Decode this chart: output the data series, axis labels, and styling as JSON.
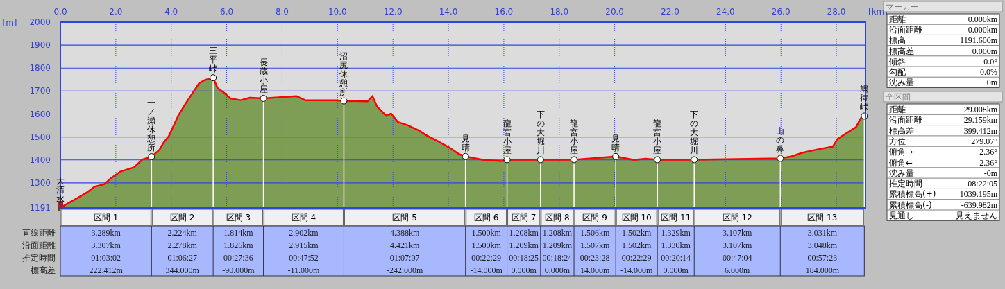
{
  "chart_data": [
    {
      "type": "area",
      "xlim": [
        0,
        29.05
      ],
      "ylim": [
        1191,
        2000
      ],
      "xlabel": "[km]",
      "ylabel": "[m]",
      "grid": true,
      "xticks": [
        {
          "value": 0,
          "label": "0.0"
        },
        {
          "value": 2,
          "label": "2.0"
        },
        {
          "value": 4,
          "label": "4.0"
        },
        {
          "value": 6,
          "label": "6.0"
        },
        {
          "value": 8,
          "label": "8.0"
        },
        {
          "value": 10,
          "label": "10.0"
        },
        {
          "value": 12,
          "label": "12.0"
        },
        {
          "value": 14,
          "label": "14.0"
        },
        {
          "value": 16,
          "label": "16.0"
        },
        {
          "value": 18,
          "label": "18.0"
        },
        {
          "value": 20,
          "label": "20.0"
        },
        {
          "value": 22,
          "label": "22.0"
        },
        {
          "value": 24,
          "label": "24.0"
        },
        {
          "value": 26,
          "label": "26.0"
        },
        {
          "value": 28,
          "label": "28.0"
        }
      ],
      "yticks": [
        1191,
        1300,
        1400,
        1500,
        1600,
        1700,
        1800,
        1900,
        2000
      ],
      "series": [
        {
          "type": "area",
          "color": "#7f9e55",
          "x": [
            0,
            0.41,
            0.74,
            0.99,
            1.24,
            1.58,
            1.83,
            2.16,
            2.66,
            2.96,
            3.289,
            3.58,
            3.71,
            3.91,
            4.25,
            4.5,
            4.75,
            5.0,
            5.21,
            5.513,
            5.67,
            5.88,
            6.13,
            6.5,
            6.84,
            7.327,
            8.51,
            8.84,
            9.93,
            10.229,
            11.09,
            11.26,
            11.43,
            11.76,
            11.93,
            12.18,
            12.51,
            12.93,
            13.18,
            13.6,
            14.02,
            14.39,
            14.617,
            15.27,
            15.94,
            16.117,
            17.325,
            18.533,
            19.02,
            20.039,
            20.7,
            21.11,
            21.541,
            22.87,
            25.977,
            26.37,
            26.79,
            27.29,
            27.87,
            28.04,
            28.29,
            28.71,
            28.88,
            29.008
          ],
          "values": [
            1192,
            1220,
            1243,
            1261,
            1284,
            1294,
            1321,
            1349,
            1368,
            1402,
            1414,
            1445,
            1473,
            1503,
            1592,
            1642,
            1688,
            1733,
            1748,
            1758,
            1713,
            1695,
            1668,
            1660,
            1671,
            1668,
            1678,
            1660,
            1660,
            1657,
            1655,
            1678,
            1632,
            1592,
            1602,
            1565,
            1552,
            1529,
            1509,
            1483,
            1455,
            1425,
            1415,
            1400,
            1395,
            1401,
            1401,
            1401,
            1405,
            1415,
            1400,
            1405,
            1401,
            1401,
            1407,
            1415,
            1432,
            1445,
            1458,
            1491,
            1511,
            1543,
            1582,
            1591
          ]
        },
        {
          "type": "lollipop",
          "color": "#ffffff",
          "marker": "circle",
          "x": [
            3.289,
            5.513,
            7.327,
            10.229,
            14.617,
            16.117,
            17.325,
            18.533,
            20.039,
            21.541,
            22.87,
            25.977,
            29.008
          ],
          "values": [
            1414,
            1758,
            1668,
            1657,
            1415,
            1401,
            1401,
            1401,
            1415,
            1401,
            1401,
            1407,
            1591
          ]
        }
      ],
      "annotations": [
        {
          "text": "大清水",
          "x": 0,
          "y": 1192
        },
        {
          "text": "一ノ瀬休憩所",
          "x": 3.289,
          "y": 1414
        },
        {
          "text": "三平峠",
          "x": 5.513,
          "y": 1758
        },
        {
          "text": "長蔵小屋",
          "x": 7.327,
          "y": 1668
        },
        {
          "text": "沼尻休憩所",
          "x": 10.229,
          "y": 1657
        },
        {
          "text": "見晴",
          "x": 14.617,
          "y": 1415
        },
        {
          "text": "龍宮小屋",
          "x": 16.117,
          "y": 1401
        },
        {
          "text": "下の大堀川",
          "x": 17.325,
          "y": 1401
        },
        {
          "text": "龍宮小屋",
          "x": 18.533,
          "y": 1401
        },
        {
          "text": "見晴",
          "x": 20.039,
          "y": 1415
        },
        {
          "text": "龍宮小屋",
          "x": 21.541,
          "y": 1401
        },
        {
          "text": "下の大堀川",
          "x": 22.87,
          "y": 1401
        },
        {
          "text": "山の鼻",
          "x": 25.977,
          "y": 1407
        },
        {
          "text": "鳩待峠",
          "x": 29.008,
          "y": 1591
        }
      ]
    },
    {
      "type": "other",
      "categories": [
        "区間 1",
        "区間 2",
        "区間 3",
        "区間 4",
        "区間 5",
        "区間 6",
        "区間 7",
        "区間 8",
        "区間 9",
        "区間 10",
        "区間 11",
        "区間 12",
        "区間 13"
      ],
      "y_categories": [
        "直線距離",
        "沿面距離",
        "推定時間",
        "標高差"
      ],
      "cell_labels": [
        [
          "3.289km",
          "2.224km",
          "1.814km",
          "2.902km",
          "4.388km",
          "1.500km",
          "1.208km",
          "1.208km",
          "1.506km",
          "1.502km",
          "1.329km",
          "3.107km",
          "3.031km"
        ],
        [
          "3.307km",
          "2.278km",
          "1.826km",
          "2.915km",
          "4.421km",
          "1.500km",
          "1.209km",
          "1.209km",
          "1.507km",
          "1.502km",
          "1.330km",
          "3.107km",
          "3.048km"
        ],
        [
          "01:03:02",
          "01:06:27",
          "00:27:36",
          "00:47:52",
          "01:07:07",
          "00:22:29",
          "00:18:25",
          "00:18:24",
          "00:23:28",
          "00:22:29",
          "00:20:14",
          "00:47:04",
          "00:57:23"
        ],
        [
          "222.412m",
          "344.000m",
          "-90.000m",
          "-11.000m",
          "-242.000m",
          "-14.000m",
          "0.000m",
          "0.000m",
          "14.000m",
          "-14.000m",
          "0.000m",
          "6.000m",
          "184.000m"
        ]
      ]
    },
    {
      "type": "other",
      "title": "マーカー",
      "y_categories": [
        "距離",
        "沿面距離",
        "標高",
        "標高差",
        "傾斜",
        "勾配",
        "沈み量"
      ],
      "cell_labels": [
        [
          "0.000km"
        ],
        [
          "0.000km"
        ],
        [
          "1191.600m"
        ],
        [
          "0.000m"
        ],
        [
          "0.0°"
        ],
        [
          "0.0%"
        ],
        [
          "0m"
        ]
      ]
    },
    {
      "type": "other",
      "title": "全区間",
      "y_categories": [
        "距離",
        "沿面距離",
        "標高差",
        "方位",
        "俯角→",
        "俯角←",
        "沈み量",
        "推定時間",
        "累積標高(+)",
        "累積標高(-)",
        "見通し"
      ],
      "cell_labels": [
        [
          "29.008km"
        ],
        [
          "29.159km"
        ],
        [
          "399.412m"
        ],
        [
          "279.07°"
        ],
        [
          "-2.36°"
        ],
        [
          "2.36°"
        ],
        [
          "-0m"
        ],
        [
          "08:22:05"
        ],
        [
          "1039.195m"
        ],
        [
          "-639.982m"
        ],
        [
          "見えません"
        ]
      ]
    }
  ]
}
